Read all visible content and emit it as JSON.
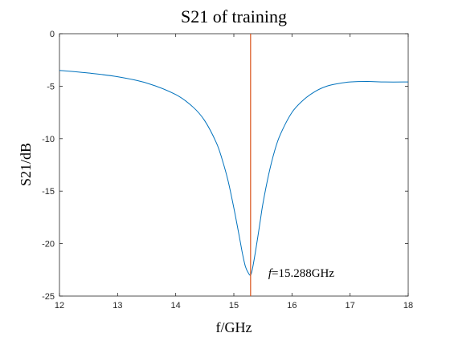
{
  "chart_data": {
    "type": "line",
    "title": "S21 of training",
    "xlabel": "f/GHz",
    "ylabel": "S21/dB",
    "xlim": [
      12,
      18
    ],
    "ylim": [
      -25,
      0
    ],
    "xticks": [
      12,
      13,
      14,
      15,
      16,
      17,
      18
    ],
    "yticks": [
      0,
      -5,
      -10,
      -15,
      -20,
      -25
    ],
    "grid": false,
    "series": [
      {
        "color": "#0072BD",
        "x": [
          12,
          12.5,
          13,
          13.5,
          14,
          14.3,
          14.5,
          14.7,
          14.8,
          14.9,
          15,
          15.1,
          15.15,
          15.2,
          15.25,
          15.288,
          15.32,
          15.38,
          15.45,
          15.5,
          15.6,
          15.7,
          15.8,
          16,
          16.2,
          16.4,
          16.6,
          16.8,
          17,
          17.3,
          17.6,
          18
        ],
        "y": [
          -3.5,
          -3.75,
          -4.1,
          -4.7,
          -5.8,
          -7.0,
          -8.3,
          -10.4,
          -12.0,
          -14.0,
          -16.6,
          -19.5,
          -21.0,
          -22.2,
          -22.8,
          -23.0,
          -22.4,
          -20.5,
          -18.0,
          -16.2,
          -13.4,
          -11.2,
          -9.6,
          -7.5,
          -6.3,
          -5.5,
          -5.0,
          -4.75,
          -4.6,
          -4.55,
          -4.6,
          -4.6
        ]
      }
    ],
    "marker_line": {
      "x": 15.288,
      "color": "#D95319"
    },
    "annotation": {
      "x": 15.288,
      "y": -23,
      "italic": "f",
      "rest": "=15.288GHz"
    }
  }
}
